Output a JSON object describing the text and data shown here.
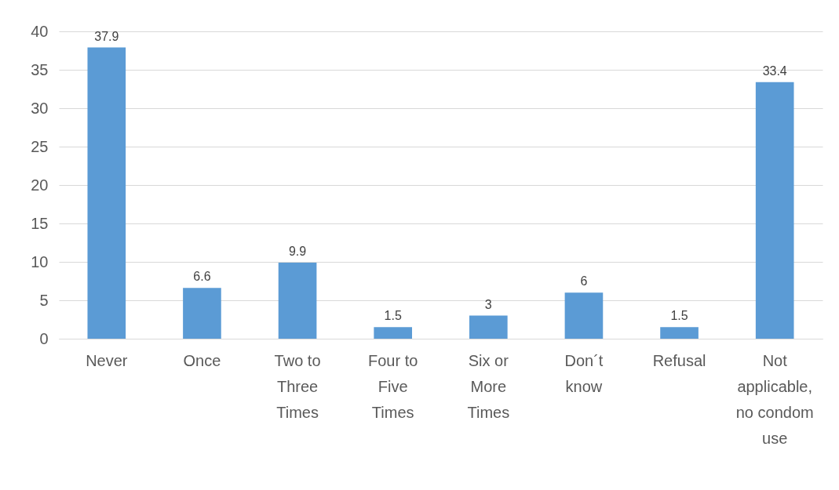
{
  "chart_data": {
    "type": "bar",
    "categories": [
      "Never",
      "Once",
      "Two to Three Times",
      "Four to Five Times",
      "Six or More Times",
      "Don´t know",
      "Refusal",
      "Not applicable, no condom use"
    ],
    "values": [
      37.9,
      6.6,
      9.9,
      1.5,
      3,
      6,
      1.5,
      33.4
    ],
    "color": "#5b9bd5",
    "ylim": [
      0,
      40
    ],
    "yticks": [
      0,
      5,
      10,
      15,
      20,
      25,
      30,
      35,
      40
    ],
    "grid": "y",
    "data_labels": true
  }
}
